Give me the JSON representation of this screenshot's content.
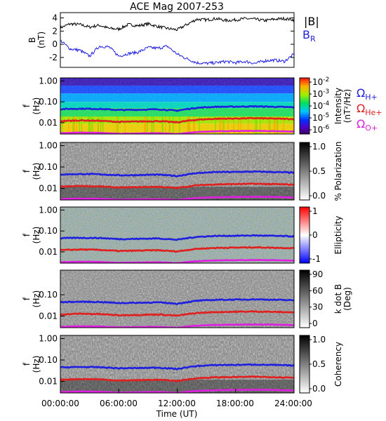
{
  "chart_data": {
    "type": "spectrogram-stack",
    "title": "ACE Mag 2007-253",
    "xlabel": "Time (UT)",
    "x_ticks": [
      "00:00:00",
      "06:00:00",
      "12:00:00",
      "18:00:00",
      "24:00:00"
    ],
    "x_range_hours": [
      0,
      24
    ],
    "panels": [
      {
        "id": "b-field",
        "type": "line",
        "ylabel_main": "B",
        "ylabel_unit": "(nT)",
        "y_ticks": [
          "4",
          "2",
          "0",
          "-2"
        ],
        "ylim": [
          -3.5,
          4.8
        ],
        "legend": [
          {
            "label": "|B|",
            "color": "#000000"
          },
          {
            "label": "B",
            "sub": "R",
            "color": "#1f1fe0"
          }
        ],
        "series": [
          {
            "name": "|B|",
            "color": "#000000",
            "x": [
              0,
              1,
              2,
              3,
              4,
              5,
              6,
              7,
              8,
              9,
              10,
              11,
              12,
              13,
              14,
              15,
              16,
              17,
              18,
              19,
              20,
              21,
              22,
              23,
              24
            ],
            "values": [
              2.5,
              3.1,
              3.0,
              2.6,
              2.9,
              2.4,
              2.3,
              3.0,
              2.8,
              3.1,
              2.7,
              2.4,
              2.2,
              3.0,
              3.8,
              3.7,
              3.9,
              3.6,
              3.7,
              3.9,
              3.8,
              3.6,
              3.8,
              3.9,
              3.7
            ]
          },
          {
            "name": "B_R",
            "color": "#1f1fe0",
            "x": [
              0,
              1,
              2,
              3,
              4,
              5,
              6,
              7,
              8,
              9,
              10,
              11,
              12,
              13,
              14,
              15,
              16,
              17,
              18,
              19,
              20,
              21,
              22,
              23,
              24
            ],
            "values": [
              0.6,
              -0.7,
              -0.9,
              -1.8,
              -0.3,
              -0.4,
              -1.8,
              -1.4,
              -1.2,
              -0.5,
              -0.6,
              -0.3,
              -1.5,
              -2.2,
              -2.8,
              -2.9,
              -2.8,
              -2.6,
              -2.8,
              -2.6,
              -2.9,
              -2.5,
              -2.4,
              -2.6,
              -1.5
            ]
          }
        ]
      },
      {
        "id": "intensity",
        "type": "heatmap",
        "colormap": "rainbow",
        "ylabel_main": "f",
        "ylabel_unit": "(Hz)",
        "y_ticks": [
          "1.00",
          "0.10",
          "0.01"
        ],
        "colorbar_label": "Intensity",
        "colorbar_unit": "(nT²/Hz)",
        "colorbar_ticks": [
          {
            "base": "10",
            "exp": "-2"
          },
          {
            "base": "10",
            "exp": "-3"
          },
          {
            "base": "10",
            "exp": "-4"
          },
          {
            "base": "10",
            "exp": "-5"
          },
          {
            "base": "10",
            "exp": "-6"
          }
        ],
        "legend": [
          {
            "label": "Ω",
            "sub": "H+",
            "color": "#1f1fe0"
          },
          {
            "label": "Ω",
            "sub": "He+",
            "color": "#e01f1f"
          },
          {
            "label": "Ω",
            "sub": "O+",
            "color": "#e01fe0"
          }
        ]
      },
      {
        "id": "polarization",
        "type": "heatmap",
        "colormap": "gray",
        "ylabel_main": "f",
        "ylabel_unit": "(Hz)",
        "y_ticks": [
          "1.00",
          "0.10",
          "0.01"
        ],
        "colorbar_label": "% Polarization",
        "colorbar_ticks": [
          "1.0",
          "0.5",
          "0.0"
        ]
      },
      {
        "id": "ellipticity",
        "type": "heatmap",
        "colormap": "bwr",
        "ylabel_main": "f",
        "ylabel_unit": "(Hz)",
        "y_ticks": [
          "1.00",
          "0.10",
          "0.01"
        ],
        "colorbar_label": "Ellipticity",
        "colorbar_ticks": [
          "1",
          "0",
          "-1"
        ]
      },
      {
        "id": "kdotb",
        "type": "heatmap",
        "colormap": "gray",
        "ylabel_main": "f",
        "ylabel_unit": "(Hz)",
        "y_ticks": [
          "0.10",
          "0.01"
        ],
        "colorbar_label": "k dot B",
        "colorbar_unit": "(Deg)",
        "colorbar_ticks": [
          "90",
          "60",
          "30",
          "0"
        ]
      },
      {
        "id": "coherency",
        "type": "heatmap",
        "colormap": "gray",
        "ylabel_main": "f",
        "ylabel_unit": "(Hz)",
        "y_ticks": [
          "1.00",
          "0.10",
          "0.01"
        ],
        "colorbar_label": "Coherency",
        "colorbar_ticks": [
          "1.0",
          "0.5",
          "0.0"
        ]
      }
    ],
    "gyrofrequency_lines": [
      {
        "name": "Ω_H+",
        "color": "#1f1fe0",
        "x": [
          0,
          2,
          4,
          6,
          8,
          10,
          12,
          14,
          16,
          18,
          20,
          22,
          24
        ],
        "values": [
          0.045,
          0.047,
          0.046,
          0.041,
          0.042,
          0.044,
          0.038,
          0.052,
          0.058,
          0.059,
          0.061,
          0.058,
          0.055
        ]
      },
      {
        "name": "Ω_He+",
        "color": "#e01f1f",
        "x": [
          0,
          2,
          4,
          6,
          8,
          10,
          12,
          14,
          16,
          18,
          20,
          22,
          24
        ],
        "values": [
          0.012,
          0.013,
          0.0125,
          0.011,
          0.0115,
          0.012,
          0.0105,
          0.014,
          0.0155,
          0.016,
          0.0165,
          0.0158,
          0.015
        ]
      },
      {
        "name": "Ω_O+",
        "color": "#e01fe0",
        "x": [
          0,
          2,
          4,
          6,
          8,
          10,
          12,
          14,
          16,
          18,
          20,
          22,
          24
        ],
        "values": [
          0.0032,
          0.0034,
          0.0033,
          0.003,
          0.0031,
          0.0032,
          0.0029,
          0.0036,
          0.0039,
          0.004,
          0.0041,
          0.004,
          0.0038
        ]
      }
    ]
  }
}
